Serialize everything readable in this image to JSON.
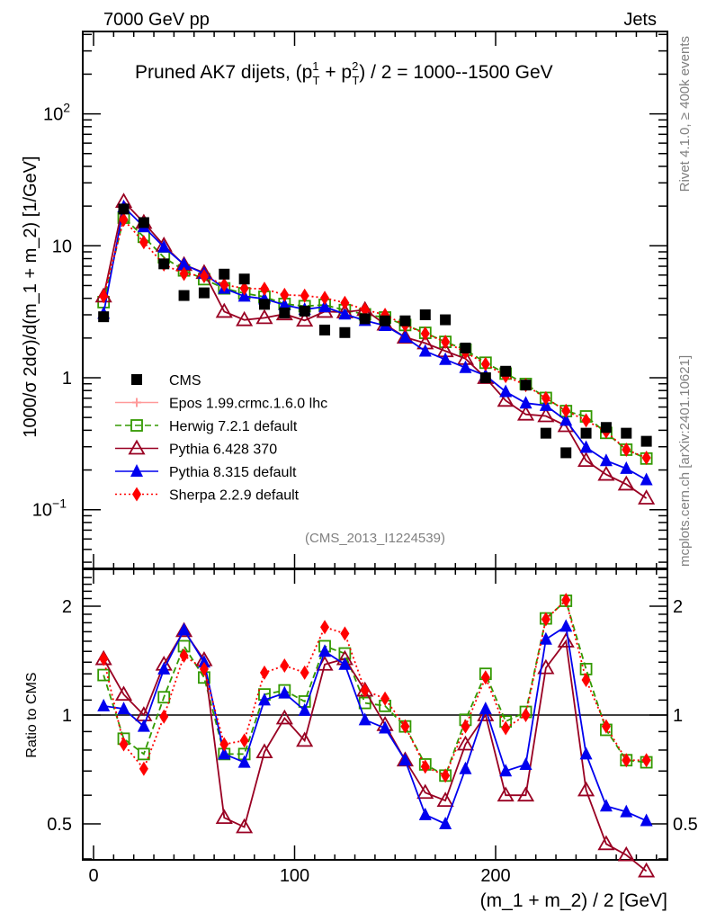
{
  "header": {
    "left": "7000 GeV pp",
    "right": "Jets"
  },
  "side_labels": {
    "rivet": "Rivet 4.1.0, ≥ 400k events",
    "mcplots": "mcplots.cern.ch [arXiv:2401.10621]"
  },
  "chart_data": [
    {
      "type": "scatter",
      "panel": "main",
      "title": "Pruned AK7 dijets, (p_T^1 + p_T^2) / 2 = 1000--1500 GeV",
      "title_parts": {
        "pre": "Pruned AK7 dijets, (p",
        "sup1": "1",
        "sub1": "T",
        "mid": " + p",
        "sup2": "2",
        "sub2": "T",
        "post": ") / 2 = 1000--1500 GeV"
      },
      "ylabel": "1000/σ  2dσ)/d(m_1 + m_2) [1/GeV]",
      "yscale": "log",
      "ylim": [
        0.035,
        400
      ],
      "xlim": [
        -5,
        285
      ],
      "y_ticks": [
        {
          "value": 0.1,
          "label": "10",
          "exp": "−1"
        },
        {
          "value": 1,
          "label": "1",
          "exp": ""
        },
        {
          "value": 10,
          "label": "10",
          "exp": ""
        },
        {
          "value": 100,
          "label": "10",
          "exp": "2"
        }
      ],
      "annotation": "(CMS_2013_I1224539)",
      "legend_position": "center-left",
      "x": [
        5,
        15,
        25,
        35,
        45,
        55,
        65,
        75,
        85,
        95,
        105,
        115,
        125,
        135,
        145,
        155,
        165,
        175,
        185,
        195,
        205,
        215,
        225,
        235,
        245,
        255,
        265,
        275
      ],
      "data": {
        "name": "CMS",
        "values": [
          2.9,
          19,
          15,
          7.3,
          4.2,
          4.4,
          6.1,
          5.6,
          3.6,
          3.1,
          3.2,
          2.3,
          2.2,
          2.8,
          2.7,
          2.7,
          3.0,
          2.75,
          1.68,
          1.0,
          1.12,
          0.88,
          0.38,
          0.27,
          0.38,
          0.42,
          0.38,
          0.33
        ]
      },
      "series": [
        {
          "name": "Epos 1.99.crmc.1.6.0 lhc",
          "color": "#ff9999",
          "style": "solid",
          "marker": "open-cross",
          "values": []
        },
        {
          "name": "Herwig 7.2.1 default",
          "color": "#339900",
          "style": "dashed",
          "marker": "open-square",
          "values": "ratio*CMS"
        },
        {
          "name": "Pythia 6.428 370",
          "color": "#990022",
          "style": "solid",
          "marker": "open-triangle",
          "values": "ratio*CMS"
        },
        {
          "name": "Pythia 8.315 default",
          "color": "#0000ee",
          "style": "solid",
          "marker": "filled-triangle",
          "values": "ratio*CMS"
        },
        {
          "name": "Sherpa 2.2.9 default",
          "color": "#ff0000",
          "style": "dotted",
          "marker": "filled-diamond",
          "values": "ratio*CMS"
        }
      ]
    },
    {
      "type": "line",
      "panel": "ratio",
      "ylabel": "Ratio to CMS",
      "xlabel": "(m_1 + m_2) / 2 [GeV]",
      "yscale": "log",
      "ylim": [
        0.4,
        2.5
      ],
      "xlim": [
        -5,
        285
      ],
      "y_ticks": [
        {
          "value": 0.5,
          "label": "0.5"
        },
        {
          "value": 1,
          "label": "1"
        },
        {
          "value": 2,
          "label": "2"
        }
      ],
      "x_ticks": [
        {
          "value": 0,
          "label": "0"
        },
        {
          "value": 100,
          "label": "100"
        },
        {
          "value": 200,
          "label": "200"
        }
      ],
      "x": [
        5,
        15,
        25,
        35,
        45,
        55,
        65,
        75,
        85,
        95,
        105,
        115,
        125,
        135,
        145,
        155,
        165,
        175,
        185,
        195,
        205,
        215,
        225,
        235,
        245,
        255,
        265,
        275
      ],
      "series": [
        {
          "name": "Herwig 7.2.1 default",
          "color": "#339900",
          "style": "dashed",
          "marker": "open-square",
          "values": [
            1.29,
            0.86,
            0.78,
            1.12,
            1.55,
            1.27,
            0.78,
            0.78,
            1.14,
            1.17,
            1.09,
            1.55,
            1.48,
            1.08,
            1.06,
            0.93,
            0.73,
            0.68,
            0.97,
            1.3,
            0.96,
            1.02,
            1.85,
            2.07,
            1.34,
            0.91,
            0.75,
            0.74
          ]
        },
        {
          "name": "Pythia 6.428 370",
          "color": "#990022",
          "style": "solid",
          "marker": "open-triangle",
          "values": [
            1.43,
            1.14,
            1.0,
            1.38,
            1.71,
            1.42,
            0.52,
            0.49,
            0.79,
            0.98,
            0.85,
            1.38,
            1.43,
            1.17,
            0.94,
            0.75,
            0.61,
            0.58,
            0.83,
            1.0,
            0.6,
            0.6,
            1.35,
            1.6,
            0.62,
            0.44,
            0.41,
            0.37
          ]
        },
        {
          "name": "Pythia 8.315 default",
          "color": "#0000ee",
          "style": "solid",
          "marker": "filled-triangle",
          "values": [
            1.06,
            1.04,
            0.93,
            1.34,
            1.72,
            1.4,
            0.78,
            0.74,
            1.1,
            1.15,
            1.03,
            1.5,
            1.38,
            0.97,
            0.92,
            0.75,
            0.53,
            0.5,
            0.71,
            1.04,
            0.7,
            0.73,
            1.62,
            1.76,
            0.78,
            0.56,
            0.54,
            0.51
          ]
        },
        {
          "name": "Sherpa 2.2.9 default",
          "color": "#ff0000",
          "style": "dotted",
          "marker": "filled-diamond",
          "values": [
            1.43,
            0.83,
            0.71,
            0.99,
            1.46,
            1.34,
            0.83,
            0.85,
            1.31,
            1.37,
            1.31,
            1.75,
            1.68,
            1.17,
            1.11,
            0.93,
            0.72,
            0.68,
            0.93,
            1.27,
            0.92,
            1.0,
            1.84,
            2.08,
            1.25,
            0.93,
            0.75,
            0.75
          ]
        }
      ]
    }
  ]
}
